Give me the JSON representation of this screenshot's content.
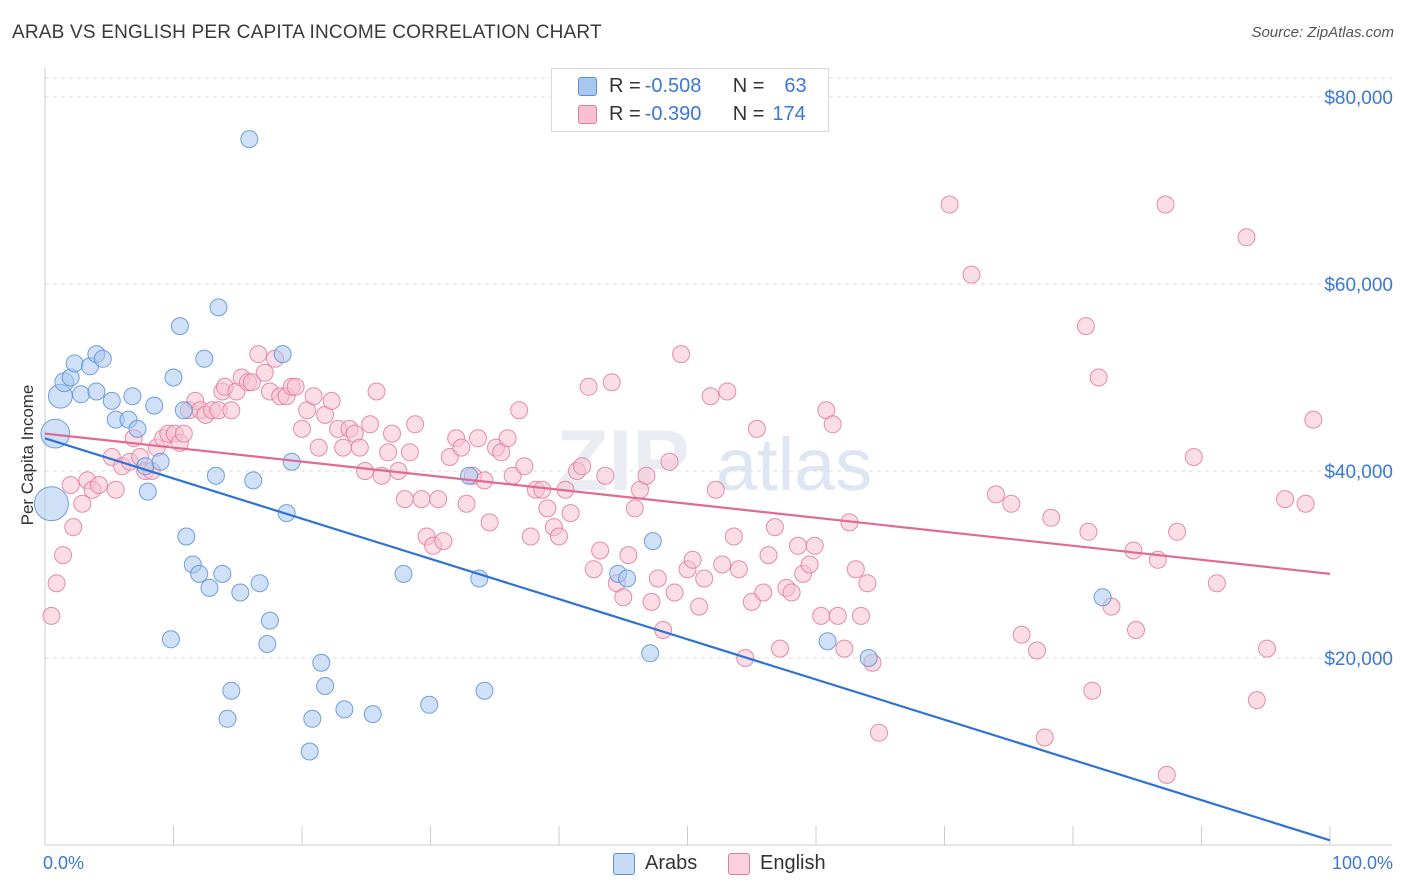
{
  "title": "ARAB VS ENGLISH PER CAPITA INCOME CORRELATION CHART",
  "source": "Source: ZipAtlas.com",
  "watermark": {
    "zip": "ZIP",
    "atlas": "atlas"
  },
  "legend": {
    "rows": [
      {
        "r_label": "R = ",
        "r_value": "-0.508",
        "n_label": "N = ",
        "n_value": "63",
        "color": "#a9c8f0",
        "stroke": "#5b8fd6"
      },
      {
        "r_label": "R = ",
        "r_value": "-0.390",
        "n_label": "N = ",
        "n_value": "174",
        "color": "#f7c1d2",
        "stroke": "#e07a9e"
      }
    ]
  },
  "bottom_legend": [
    {
      "label": "Arabs",
      "color": "#a9c8f0",
      "stroke": "#5b8fd6"
    },
    {
      "label": "English",
      "color": "#f7c1d2",
      "stroke": "#e07a9e"
    }
  ],
  "chart_data": {
    "type": "scatter",
    "title": "ARAB VS ENGLISH PER CAPITA INCOME CORRELATION CHART",
    "xlabel": "",
    "ylabel": "Per Capita Income",
    "xlim": [
      0,
      100
    ],
    "ylim": [
      0,
      80000
    ],
    "x_tick_labels": [
      "0.0%",
      "100.0%"
    ],
    "y_ticks": [
      20000,
      40000,
      60000,
      80000
    ],
    "y_tick_labels": [
      "$20,000",
      "$40,000",
      "$60,000",
      "$80,000"
    ],
    "grid": true,
    "series": [
      {
        "name": "Arabs",
        "color": "#5b8fd6",
        "fill": "#a9c8f0",
        "trend": {
          "x": [
            0,
            100
          ],
          "y": [
            43500,
            500
          ]
        },
        "points": [
          [
            0.5,
            36500,
            2
          ],
          [
            0.8,
            44000,
            1.7
          ],
          [
            1.2,
            48000,
            1.4
          ],
          [
            1.5,
            49500,
            1.1
          ],
          [
            2.0,
            50000,
            1
          ],
          [
            2.3,
            51500,
            1
          ],
          [
            2.8,
            48200,
            1
          ],
          [
            3.5,
            51200,
            1
          ],
          [
            4.0,
            52500,
            1
          ],
          [
            4.5,
            52000,
            1
          ],
          [
            4.0,
            48500,
            1
          ],
          [
            5.2,
            47500,
            1
          ],
          [
            5.5,
            45500,
            1
          ],
          [
            6.5,
            45500,
            1
          ],
          [
            6.8,
            48000,
            1
          ],
          [
            7.2,
            44500,
            1
          ],
          [
            7.8,
            40500,
            1
          ],
          [
            8.0,
            37800,
            1
          ],
          [
            8.5,
            47000,
            1
          ],
          [
            9.0,
            41000,
            1
          ],
          [
            9.8,
            22000,
            1
          ],
          [
            10.0,
            50000,
            1
          ],
          [
            10.5,
            55500,
            1
          ],
          [
            10.8,
            46500,
            1
          ],
          [
            11.0,
            33000,
            1
          ],
          [
            11.5,
            30000,
            1
          ],
          [
            12.0,
            29000,
            1
          ],
          [
            12.4,
            52000,
            1
          ],
          [
            12.8,
            27500,
            1
          ],
          [
            13.3,
            39500,
            1
          ],
          [
            13.8,
            29000,
            1
          ],
          [
            13.5,
            57500,
            1
          ],
          [
            14.2,
            13500,
            1
          ],
          [
            14.5,
            16500,
            1
          ],
          [
            15.2,
            27000,
            1
          ],
          [
            15.9,
            75500,
            1
          ],
          [
            16.2,
            39000,
            1
          ],
          [
            16.7,
            28000,
            1
          ],
          [
            17.3,
            21500,
            1
          ],
          [
            17.5,
            24000,
            1
          ],
          [
            18.5,
            52500,
            1
          ],
          [
            18.8,
            35500,
            1
          ],
          [
            19.2,
            41000,
            1
          ],
          [
            20.6,
            10000,
            1
          ],
          [
            20.8,
            13500,
            1
          ],
          [
            21.5,
            19500,
            1
          ],
          [
            21.8,
            17000,
            1
          ],
          [
            23.3,
            14500,
            1
          ],
          [
            25.5,
            14000,
            1
          ],
          [
            27.9,
            29000,
            1
          ],
          [
            29.9,
            15000,
            1
          ],
          [
            33.0,
            39500,
            1
          ],
          [
            33.8,
            28500,
            1
          ],
          [
            34.2,
            16500,
            1
          ],
          [
            44.6,
            29000,
            1
          ],
          [
            45.3,
            28500,
            1
          ],
          [
            47.1,
            20500,
            1
          ],
          [
            47.3,
            32500,
            1
          ],
          [
            60.9,
            21800,
            1
          ],
          [
            64.1,
            20000,
            1
          ],
          [
            82.3,
            26500,
            1
          ]
        ]
      },
      {
        "name": "English",
        "color": "#e07a9e",
        "fill": "#f7c1d2",
        "trend": {
          "x": [
            0,
            100
          ],
          "y": [
            44000,
            29000
          ]
        },
        "points": [
          [
            0.5,
            24500
          ],
          [
            0.9,
            28000
          ],
          [
            1.4,
            31000
          ],
          [
            2.0,
            38500
          ],
          [
            2.2,
            34000
          ],
          [
            2.9,
            36500
          ],
          [
            3.3,
            39000
          ],
          [
            3.7,
            38000
          ],
          [
            4.2,
            38500
          ],
          [
            5.2,
            41500
          ],
          [
            5.5,
            38000
          ],
          [
            6.0,
            40500
          ],
          [
            6.6,
            41000
          ],
          [
            6.9,
            43500
          ],
          [
            7.4,
            41500
          ],
          [
            7.8,
            40000
          ],
          [
            8.3,
            40000
          ],
          [
            8.7,
            42500
          ],
          [
            9.2,
            43500
          ],
          [
            9.6,
            44000
          ],
          [
            10.1,
            44000
          ],
          [
            10.5,
            43000
          ],
          [
            10.8,
            44000
          ],
          [
            11.2,
            46500
          ],
          [
            11.7,
            47500
          ],
          [
            12.1,
            46500
          ],
          [
            12.5,
            46000
          ],
          [
            13.0,
            46500
          ],
          [
            13.5,
            46500
          ],
          [
            13.8,
            48500
          ],
          [
            14.0,
            49000
          ],
          [
            14.5,
            46500
          ],
          [
            14.9,
            48500
          ],
          [
            15.3,
            50000
          ],
          [
            15.8,
            49500
          ],
          [
            16.1,
            49500
          ],
          [
            16.6,
            52500
          ],
          [
            17.1,
            50500
          ],
          [
            17.5,
            48500
          ],
          [
            17.9,
            52000
          ],
          [
            18.3,
            48000
          ],
          [
            18.8,
            48000
          ],
          [
            19.2,
            49000
          ],
          [
            19.5,
            49000
          ],
          [
            20.0,
            44500
          ],
          [
            20.4,
            46500
          ],
          [
            20.9,
            48000
          ],
          [
            21.3,
            42500
          ],
          [
            21.8,
            46000
          ],
          [
            22.3,
            47500
          ],
          [
            22.8,
            44500
          ],
          [
            23.2,
            42500
          ],
          [
            23.7,
            44500
          ],
          [
            24.1,
            44000
          ],
          [
            24.5,
            42500
          ],
          [
            24.9,
            40000
          ],
          [
            25.3,
            45000
          ],
          [
            25.8,
            48500
          ],
          [
            26.2,
            39500
          ],
          [
            26.7,
            42000
          ],
          [
            27.0,
            44000
          ],
          [
            27.5,
            40000
          ],
          [
            28.0,
            37000
          ],
          [
            28.4,
            42000
          ],
          [
            28.8,
            45000
          ],
          [
            29.3,
            37000
          ],
          [
            29.7,
            33000
          ],
          [
            30.2,
            32000
          ],
          [
            30.6,
            37000
          ],
          [
            31.0,
            32500
          ],
          [
            31.5,
            41500
          ],
          [
            32.0,
            43500
          ],
          [
            32.4,
            42500
          ],
          [
            32.8,
            36500
          ],
          [
            33.3,
            39500
          ],
          [
            33.7,
            43500
          ],
          [
            34.2,
            39000
          ],
          [
            34.6,
            34500
          ],
          [
            35.1,
            42500
          ],
          [
            35.5,
            42000
          ],
          [
            36.0,
            43500
          ],
          [
            36.4,
            39500
          ],
          [
            36.9,
            46500
          ],
          [
            37.3,
            40500
          ],
          [
            37.8,
            33000
          ],
          [
            38.2,
            38000
          ],
          [
            38.7,
            38000
          ],
          [
            39.1,
            36000
          ],
          [
            39.6,
            34000
          ],
          [
            40.0,
            33000
          ],
          [
            40.5,
            38000
          ],
          [
            40.9,
            35500
          ],
          [
            41.4,
            40000
          ],
          [
            41.8,
            40500
          ],
          [
            42.3,
            49000
          ],
          [
            42.7,
            29500
          ],
          [
            43.2,
            31500
          ],
          [
            43.6,
            39500
          ],
          [
            44.1,
            49500
          ],
          [
            44.5,
            28000
          ],
          [
            45.0,
            26500
          ],
          [
            45.4,
            31000
          ],
          [
            45.9,
            36000
          ],
          [
            46.3,
            38000
          ],
          [
            46.8,
            39500
          ],
          [
            47.2,
            26000
          ],
          [
            47.7,
            28500
          ],
          [
            48.1,
            23000
          ],
          [
            48.6,
            41000
          ],
          [
            49.0,
            27000
          ],
          [
            49.5,
            52500
          ],
          [
            50.0,
            29500
          ],
          [
            50.4,
            30500
          ],
          [
            50.9,
            25500
          ],
          [
            51.3,
            28500
          ],
          [
            51.8,
            48000
          ],
          [
            52.2,
            38000
          ],
          [
            52.7,
            30000
          ],
          [
            53.1,
            48500
          ],
          [
            53.6,
            33000
          ],
          [
            54.0,
            29500
          ],
          [
            54.5,
            20000
          ],
          [
            55.0,
            26000
          ],
          [
            55.4,
            44500
          ],
          [
            55.9,
            27000
          ],
          [
            56.3,
            31000
          ],
          [
            56.8,
            34000
          ],
          [
            57.2,
            21000
          ],
          [
            57.7,
            27500
          ],
          [
            58.1,
            27000
          ],
          [
            58.6,
            32000
          ],
          [
            59.0,
            29000
          ],
          [
            59.5,
            30000
          ],
          [
            59.9,
            32000
          ],
          [
            60.4,
            24500
          ],
          [
            60.8,
            46500
          ],
          [
            61.3,
            45000
          ],
          [
            61.7,
            24500
          ],
          [
            62.2,
            21000
          ],
          [
            62.6,
            34500
          ],
          [
            63.1,
            29500
          ],
          [
            63.5,
            24500
          ],
          [
            64.0,
            28000
          ],
          [
            64.4,
            19500
          ],
          [
            64.9,
            12000
          ],
          [
            70.4,
            68500
          ],
          [
            72.1,
            61000
          ],
          [
            74.0,
            37500
          ],
          [
            75.2,
            36500
          ],
          [
            76.0,
            22500
          ],
          [
            78.3,
            35000
          ],
          [
            81.0,
            55500
          ],
          [
            81.2,
            33500
          ],
          [
            82.0,
            50000
          ],
          [
            84.7,
            31500
          ],
          [
            84.9,
            23000
          ],
          [
            86.6,
            30500
          ],
          [
            87.2,
            68500
          ],
          [
            88.1,
            33500
          ],
          [
            89.4,
            41500
          ],
          [
            91.2,
            28000
          ],
          [
            93.5,
            65000
          ],
          [
            94.3,
            15500
          ],
          [
            95.1,
            21000
          ],
          [
            96.5,
            37000
          ],
          [
            98.1,
            36500
          ],
          [
            98.7,
            45500
          ],
          [
            81.5,
            16500
          ],
          [
            77.8,
            11500
          ],
          [
            87.3,
            7500
          ],
          [
            77.2,
            20800
          ],
          [
            83.0,
            25500
          ]
        ]
      }
    ]
  }
}
